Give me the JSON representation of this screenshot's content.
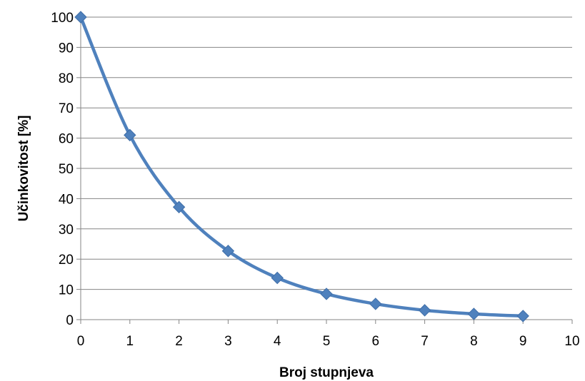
{
  "chart_data": {
    "type": "line",
    "xlabel": "Broj stupnjeva",
    "ylabel": "Učinkovitost [%]",
    "xlim": [
      0,
      10
    ],
    "ylim": [
      0,
      100
    ],
    "x_ticks": [
      "0",
      "1",
      "2",
      "3",
      "4",
      "5",
      "6",
      "7",
      "8",
      "9",
      "10"
    ],
    "y_ticks": [
      "0",
      "10",
      "20",
      "30",
      "40",
      "50",
      "60",
      "70",
      "80",
      "90",
      "100"
    ],
    "grid": "horizontal",
    "legend": "none",
    "marker": "diamond",
    "smooth": true,
    "series": [
      {
        "color": "#4F81BD",
        "x": [
          0,
          1,
          2,
          3,
          4,
          5,
          6,
          7,
          8,
          9
        ],
        "values": [
          100,
          61,
          37.2,
          22.7,
          13.8,
          8.5,
          5.2,
          3.1,
          1.9,
          1.2
        ]
      }
    ]
  }
}
